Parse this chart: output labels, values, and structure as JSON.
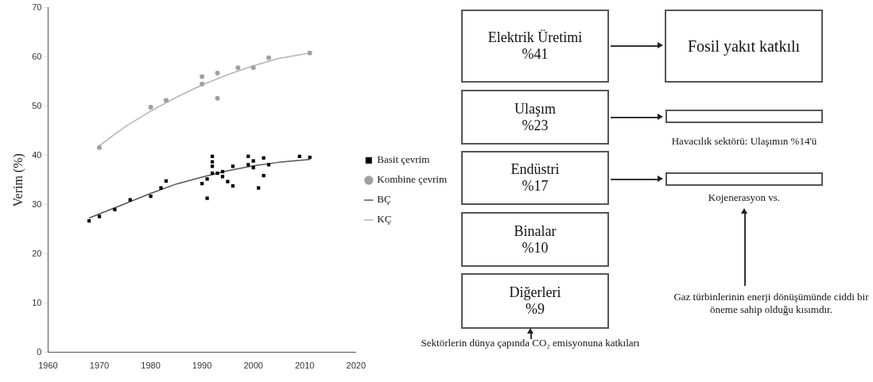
{
  "chart_data": [
    {
      "type": "scatter",
      "ylabel": "Verim (%)",
      "xlim": [
        1960,
        2020
      ],
      "xticks": [
        1960,
        1970,
        1980,
        1990,
        2000,
        2010,
        2020
      ],
      "ylim": [
        0,
        70
      ],
      "yticks": [
        0,
        10,
        20,
        30,
        40,
        50,
        60,
        70
      ],
      "grid": false,
      "legend": "right",
      "series": [
        {
          "name": "Basit çevrim",
          "color": "#000000",
          "marker": "square",
          "x": [
            1968,
            1970,
            1973,
            1976,
            1980,
            1982,
            1983,
            1990,
            1991,
            1991,
            1992,
            1992,
            1992,
            1992,
            1993,
            1994,
            1994,
            1995,
            1996,
            1996,
            1999,
            1999,
            2000,
            2000,
            2001,
            2002,
            2002,
            2003,
            2009,
            2011
          ],
          "values": [
            26.7,
            27.6,
            29,
            31,
            31.7,
            33.4,
            34.8,
            34.3,
            31.3,
            35.2,
            39.8,
            38.7,
            37.8,
            36.4,
            36.4,
            36.7,
            35.7,
            34.7,
            33.8,
            37.8,
            39.8,
            38.1,
            38.9,
            37.5,
            33.4,
            39.5,
            35.9,
            38.1,
            39.8,
            39.6
          ]
        },
        {
          "name": "Kombine çevrim",
          "color": "#a0a0a0",
          "marker": "circle",
          "x": [
            1970,
            1980,
            1983,
            1990,
            1990,
            1993,
            1993,
            1997,
            2000,
            2003,
            2011
          ],
          "values": [
            41.6,
            49.8,
            51.2,
            54.5,
            56,
            56.7,
            51.6,
            57.8,
            57.8,
            59.8,
            60.8
          ]
        },
        {
          "name": "BÇ",
          "type": "line",
          "color": "#555555",
          "marker": "none",
          "x": [
            1968,
            1975,
            1980,
            1985,
            1990,
            1995,
            2000,
            2005,
            2011
          ],
          "values": [
            27.3,
            30.2,
            32.3,
            34.2,
            35.6,
            36.9,
            37.9,
            38.6,
            39.2
          ]
        },
        {
          "name": "KÇ",
          "type": "line",
          "color": "#b4b4b4",
          "marker": "none",
          "x": [
            1970,
            1975,
            1980,
            1985,
            1990,
            1995,
            2000,
            2005,
            2011
          ],
          "values": [
            42,
            45.8,
            49,
            51.8,
            54.3,
            56.4,
            58.2,
            59.7,
            60.8
          ]
        }
      ]
    },
    {
      "type": "other",
      "annotations": [
        "Elektrik Üretimi",
        "%41",
        "Ulaşım",
        "%23",
        "Endüstri",
        "%17",
        "Binalar",
        "%10",
        "Diğerleri",
        "%9",
        "Fosil yakıt katkılı",
        "Havacılık sektörü: Ulaşımın %14'ü",
        "Kojenerasyon vs.",
        "Gaz türbinlerinin enerji dönüşümünde ciddi bir öneme sahip olduğu kısımdır.",
        "Sektörlerin dünya çapında CO₂ emisyonuna katkıları"
      ]
    }
  ]
}
